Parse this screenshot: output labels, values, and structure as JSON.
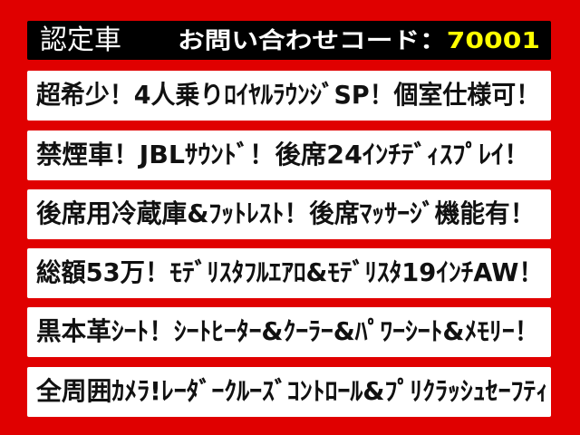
{
  "header": {
    "title": "認定車",
    "code_label": "お問い合わせコード：",
    "code_value": "70001"
  },
  "features": [
    "超希少！4人乗りﾛｲﾔﾙﾗｳﾝｼﾞSP！個室仕様可！",
    "禁煙車！JBLｻｳﾝﾄﾞ！後席24ｲﾝﾁﾃﾞｨｽﾌﾟﾚｲ！",
    "後席用冷蔵庫&ﾌｯﾄﾚｽﾄ！後席ﾏｯｻｰｼﾞ機能有！",
    "総額53万！ﾓﾃﾞﾘｽﾀﾌﾙｴｱﾛ&ﾓﾃﾞﾘｽﾀ19ｲﾝﾁAW！",
    "黒本革ｼｰﾄ！ｼｰﾄﾋｰﾀｰ&ｸｰﾗｰ&ﾊﾟﾜｰｼｰﾄ&ﾒﾓﾘｰ！",
    "全周囲ｶﾒﾗ!ﾚｰﾀﾞｰｸﾙｰｽﾞｺﾝﾄﾛｰﾙ&ﾌﾟﾘｸﾗｯｼｭｾｰﾌﾃｨ"
  ],
  "colors": {
    "background": "#e00000",
    "header": "#000000",
    "code_value": "#ffff00"
  }
}
